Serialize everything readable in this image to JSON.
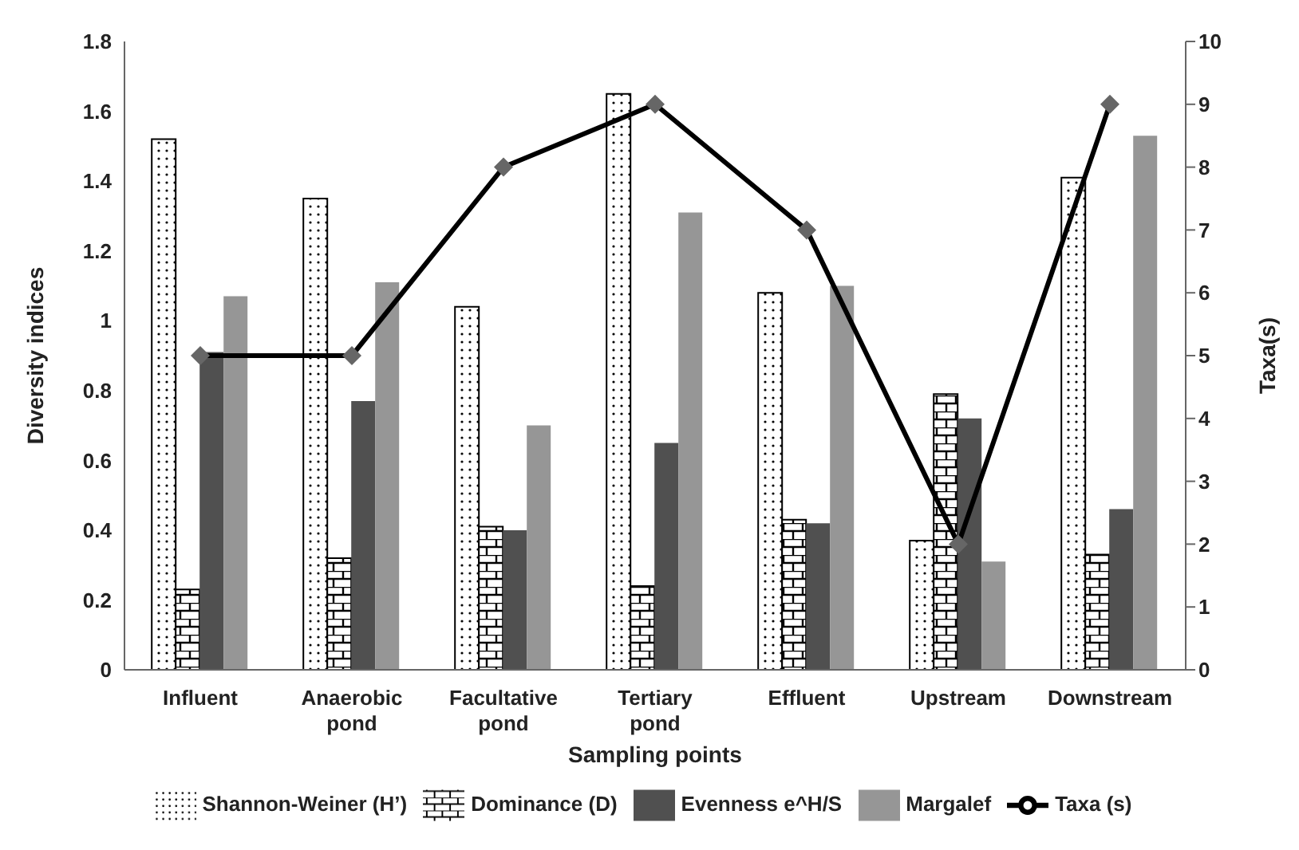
{
  "chart_data": {
    "type": "bar",
    "xlabel": "Sampling points",
    "ylabel": "Diversity indices",
    "y2label": "Taxa(s)",
    "categories": [
      "Influent",
      "Anaerobic pond",
      "Facultative pond",
      "Tertiary pond",
      "Effluent",
      "Upstream",
      "Downstream"
    ],
    "series": [
      {
        "name": "Shannon-Weiner (H’)",
        "color": "#000000",
        "values": [
          1.52,
          1.35,
          1.04,
          1.65,
          1.08,
          0.37,
          1.41
        ]
      },
      {
        "name": "Dominance (D)",
        "color": "#000000",
        "values": [
          0.23,
          0.32,
          0.41,
          0.24,
          0.43,
          0.79,
          0.33
        ]
      },
      {
        "name": "Evenness e^H/S",
        "color": "#505050",
        "values": [
          0.91,
          0.77,
          0.4,
          0.65,
          0.42,
          0.72,
          0.46
        ]
      },
      {
        "name": "Margalef",
        "color": "#969696",
        "values": [
          1.07,
          1.11,
          0.7,
          1.31,
          1.1,
          0.31,
          1.53
        ]
      },
      {
        "name": "Taxa (s)",
        "type": "line",
        "axis": "y2",
        "color": "#000000",
        "marker": "diamond",
        "values": [
          5,
          5,
          8,
          9,
          7,
          2,
          9
        ]
      }
    ],
    "ylim": [
      0,
      1.8
    ],
    "yticks": [
      0,
      0.2,
      0.4,
      0.6,
      0.8,
      1,
      1.2,
      1.4,
      1.6,
      1.8
    ],
    "y2lim": [
      0,
      10
    ],
    "y2ticks": [
      0,
      1,
      2,
      3,
      4,
      5,
      6,
      7,
      8,
      9,
      10
    ],
    "grid": false,
    "legend": "bottom"
  }
}
